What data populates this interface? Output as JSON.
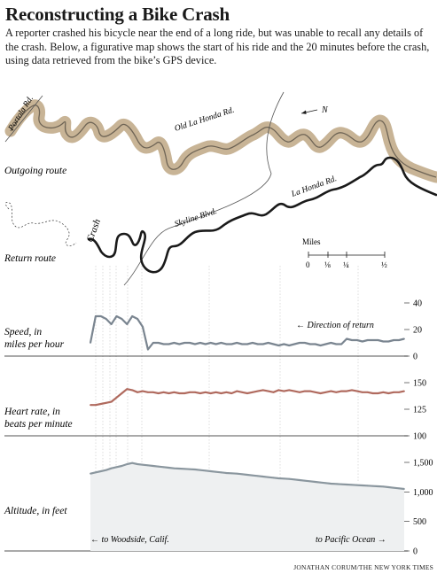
{
  "title": "Reconstructing a Bike Crash",
  "intro": "A reporter crashed his bicycle near the end of a long ride, but was unable to recall any details of the crash. Below, a figurative map shows the start of his ride and the 20 minutes before the crash, using data retrieved from the bike’s GPS device.",
  "map": {
    "roads": {
      "portola": "Portola Rd.",
      "old_la_honda": "Old La Honda Rd.",
      "la_honda": "La Honda Rd.",
      "skyline": "Skyline Blvd."
    },
    "north": "N",
    "crash": "Crash",
    "outgoing_label": "Outgoing route",
    "return_label": "Return route",
    "scale_title": "Miles",
    "scale_ticks": [
      "0",
      "⅛",
      "¼",
      "½"
    ],
    "outgoing_color": "#c8b496",
    "return_color": "#1a1a1a"
  },
  "direction_label": "← Direction of return",
  "footer": {
    "left": "← to Woodside, Calif.",
    "right": "to Pacific Ocean →"
  },
  "credit": "JONATHAN CORUM/THE NEW YORK TIMES",
  "chart_data": [
    {
      "type": "line",
      "title": "",
      "ylabel": "Speed, in miles per hour",
      "ylim": [
        0,
        40
      ],
      "yticks": [
        "0",
        "20",
        "40"
      ],
      "color": "#7a8590",
      "values": [
        10,
        30,
        30,
        28,
        24,
        30,
        28,
        24,
        30,
        28,
        22,
        5,
        10,
        10,
        9,
        9,
        10,
        9,
        10,
        10,
        9,
        10,
        9,
        10,
        9,
        10,
        9,
        9,
        10,
        9,
        9,
        10,
        9,
        9,
        10,
        9,
        8,
        9,
        8,
        9,
        10,
        10,
        9,
        9,
        8,
        9,
        10,
        9,
        9,
        13,
        12,
        12,
        11,
        12,
        12,
        12,
        11,
        11,
        12,
        12,
        13
      ]
    },
    {
      "type": "line",
      "title": "",
      "ylabel": "Heart rate, in beats per minute",
      "ylim": [
        100,
        150
      ],
      "yticks": [
        "100",
        "125",
        "150"
      ],
      "color": "#b06a5e",
      "values": [
        129,
        129,
        130,
        131,
        132,
        136,
        140,
        144,
        143,
        141,
        142,
        141,
        141,
        140,
        141,
        140,
        141,
        140,
        140,
        141,
        141,
        140,
        141,
        140,
        141,
        140,
        141,
        140,
        142,
        141,
        140,
        141,
        142,
        143,
        142,
        141,
        143,
        142,
        143,
        142,
        141,
        142,
        142,
        141,
        140,
        141,
        142,
        141,
        142,
        142,
        143,
        142,
        141,
        141,
        140,
        140,
        141,
        140,
        141,
        141,
        142
      ]
    },
    {
      "type": "area",
      "title": "",
      "ylabel": "Altitude, in feet",
      "ylim": [
        0,
        1500
      ],
      "yticks": [
        "0",
        "500",
        "1,000",
        "1,500"
      ],
      "color": "#8a969e",
      "values": [
        1310,
        1330,
        1350,
        1370,
        1400,
        1420,
        1440,
        1470,
        1490,
        1470,
        1460,
        1450,
        1440,
        1430,
        1420,
        1410,
        1400,
        1395,
        1390,
        1385,
        1380,
        1370,
        1360,
        1350,
        1340,
        1330,
        1320,
        1315,
        1310,
        1300,
        1290,
        1280,
        1270,
        1260,
        1250,
        1240,
        1230,
        1225,
        1220,
        1210,
        1200,
        1190,
        1180,
        1170,
        1160,
        1150,
        1140,
        1135,
        1130,
        1125,
        1120,
        1115,
        1110,
        1105,
        1100,
        1095,
        1090,
        1080,
        1070,
        1060,
        1050
      ]
    }
  ]
}
